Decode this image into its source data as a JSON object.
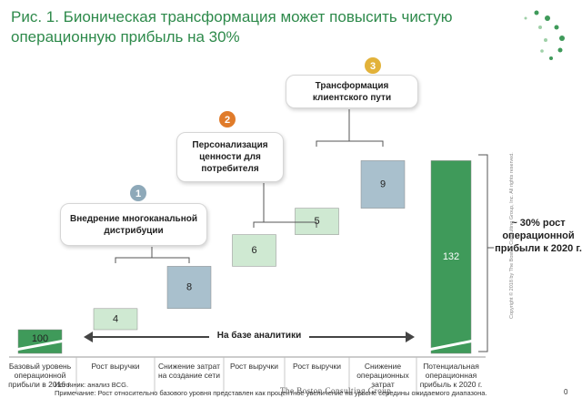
{
  "title": "Рис. 1. Бионическая трансформация может повысить чистую операционную прибыль на 30%",
  "chart_data": {
    "type": "waterfall",
    "categories": [
      "Базовый уровень операционной прибыли в 2016 г.",
      "Рост выручки",
      "Снижение затрат на создание сети",
      "Рост выручки",
      "Рост выручки",
      "Снижение операционных затрат",
      "Потенциальная операционная прибыль к 2020 г."
    ],
    "values": [
      100,
      4,
      8,
      6,
      5,
      9,
      132
    ],
    "colors": [
      "#3f9a5a",
      "#cfe9d2",
      "#a9c0cd",
      "#cfe9d2",
      "#cfe9d2",
      "#a9c0cd",
      "#3f9a5a"
    ],
    "callouts": [
      {
        "number": 1,
        "text": "Внедрение многоканальной дистрибуции"
      },
      {
        "number": 2,
        "text": "Персонализация ценности для потребителя"
      },
      {
        "number": 3,
        "text": "Трансформация клиентского пути"
      }
    ],
    "bracket_label": "~ 30% рост операционной прибыли к 2020 г.",
    "arrow_label": "На базе аналитики"
  },
  "footer": {
    "source": "Источник: анализ BCG.",
    "note": "Примечание: Рост относительно базового уровня представлен как процентное увеличение на уровне середины ожидаемого диапазона.",
    "logo": "The Boston Consulting Group",
    "copyright": "Copyright © 2018 by The Boston Consulting Group, Inc. All rights reserved.",
    "page": "0"
  }
}
